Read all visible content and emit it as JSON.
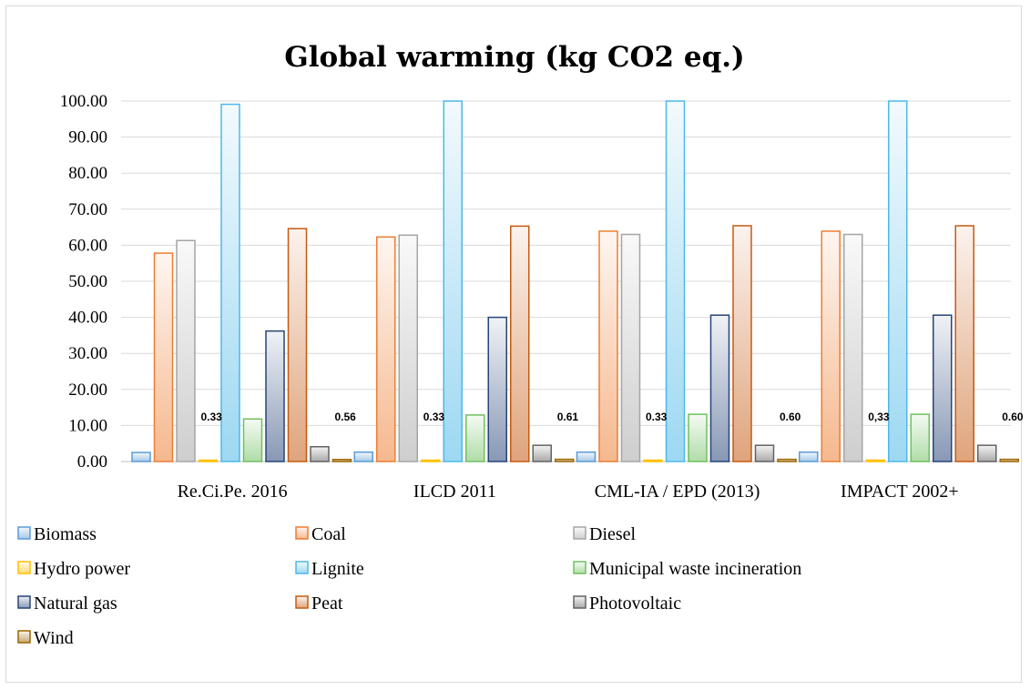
{
  "chart_data": {
    "type": "bar",
    "title": "Global warming (kg CO2 eq.)",
    "xlabel": "",
    "ylabel": "",
    "ylim": [
      0,
      100
    ],
    "yticks": [
      "0.00",
      "10.00",
      "20.00",
      "30.00",
      "40.00",
      "50.00",
      "60.00",
      "70.00",
      "80.00",
      "90.00",
      "100.00"
    ],
    "grid": true,
    "legend_position": "bottom",
    "categories": [
      "Re.Ci.Pe. 2016",
      "ILCD 2011",
      "CML-IA / EPD (2013)",
      "IMPACT 2002+"
    ],
    "series": [
      {
        "name": "Biomass",
        "color": "#5b9bd5",
        "values": [
          2.5,
          2.6,
          2.6,
          2.6
        ]
      },
      {
        "name": "Coal",
        "color": "#ed7d31",
        "values": [
          57.8,
          62.3,
          63.9,
          63.9
        ]
      },
      {
        "name": "Diesel",
        "color": "#a5a5a5",
        "values": [
          61.3,
          62.8,
          63.0,
          63.0
        ]
      },
      {
        "name": "Hydro power",
        "color": "#ffc000",
        "values": [
          0.33,
          0.33,
          0.33,
          0.33
        ],
        "labels": [
          "0.33",
          "0.33",
          "0.33",
          "0,33"
        ]
      },
      {
        "name": "Lignite",
        "color": "#4db8e8",
        "values": [
          99.1,
          100.0,
          100.0,
          100.0
        ]
      },
      {
        "name": "Municipal waste incineration",
        "color": "#70c060",
        "values": [
          11.8,
          12.9,
          13.1,
          13.1
        ]
      },
      {
        "name": "Natural gas",
        "color": "#264478",
        "values": [
          36.2,
          40.0,
          40.6,
          40.6
        ]
      },
      {
        "name": "Peat",
        "color": "#c55a11",
        "values": [
          64.6,
          65.3,
          65.4,
          65.4
        ]
      },
      {
        "name": "Photovoltaic",
        "color": "#636363",
        "values": [
          4.1,
          4.5,
          4.5,
          4.5
        ]
      },
      {
        "name": "Wind",
        "color": "#9c6500",
        "values": [
          0.56,
          0.61,
          0.6,
          0.6
        ],
        "labels": [
          "0.56",
          "0.61",
          "0.60",
          "0.60"
        ]
      }
    ]
  }
}
